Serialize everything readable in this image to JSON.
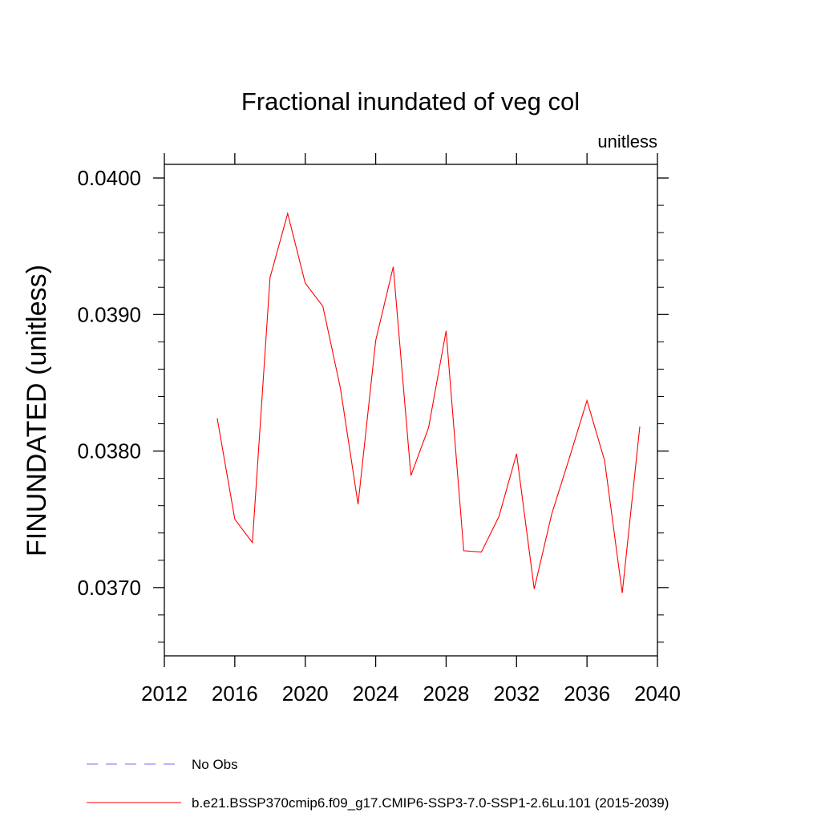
{
  "chart_data": {
    "type": "line",
    "title": "Fractional inundated of veg col",
    "units_label": "unitless",
    "xlabel": "",
    "ylabel": "FINUNDATED  (unitless)",
    "xlim": [
      2012,
      2040
    ],
    "ylim": [
      0.0365,
      0.0401
    ],
    "x_ticks": [
      2012,
      2016,
      2020,
      2024,
      2028,
      2032,
      2036,
      2040
    ],
    "x_tick_labels": [
      "2012",
      "2016",
      "2020",
      "2024",
      "2028",
      "2032",
      "2036",
      "2040"
    ],
    "y_ticks": [
      0.037,
      0.038,
      0.039,
      0.04
    ],
    "y_tick_labels": [
      "0.0370",
      "0.0380",
      "0.0390",
      "0.0400"
    ],
    "grid": false,
    "legend_position": "bottom",
    "series": [
      {
        "name": "No Obs",
        "color": "#7b68ee",
        "style": "dashed",
        "x": [],
        "y": []
      },
      {
        "name": "b.e21.BSSP370cmip6.f09_g17.CMIP6-SSP3-7.0-SSP1-2.6Lu.101 (2015-2039)",
        "color": "#ff0000",
        "style": "solid",
        "x": [
          2015,
          2016,
          2017,
          2018,
          2019,
          2020,
          2021,
          2022,
          2023,
          2024,
          2025,
          2026,
          2027,
          2028,
          2029,
          2030,
          2031,
          2032,
          2033,
          2034,
          2035,
          2036,
          2037,
          2038,
          2039
        ],
        "y": [
          0.03824,
          0.0375,
          0.03733,
          0.03927,
          0.03974,
          0.03923,
          0.03906,
          0.03846,
          0.03761,
          0.03881,
          0.03935,
          0.03782,
          0.03817,
          0.03888,
          0.03727,
          0.03726,
          0.03752,
          0.03798,
          0.03699,
          0.03754,
          0.03795,
          0.03837,
          0.03793,
          0.03696,
          0.03818
        ]
      }
    ]
  }
}
